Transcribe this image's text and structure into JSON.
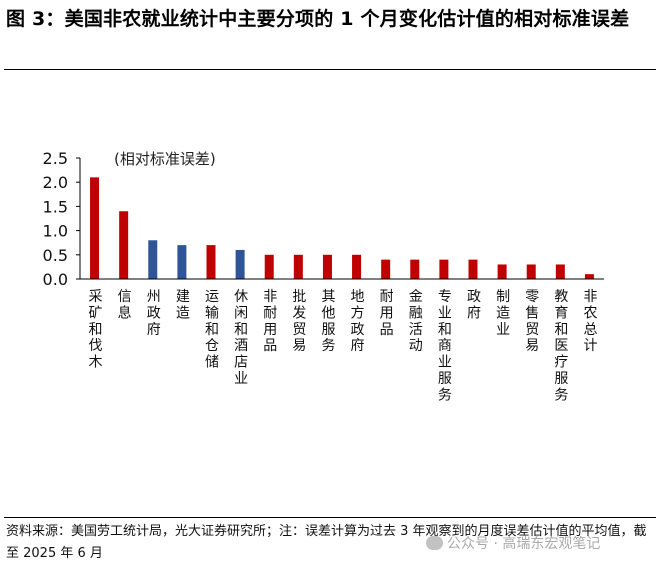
{
  "title": "图 3：美国非农就业统计中主要分项的 1 个月变化估计值的相对标准误差",
  "source": "资料来源：美国劳工统计局，光大证券研究所；注：误差计算为过去 3 年观察到的月度误差估计值的平均值，截至 2025 年 6 月",
  "watermark": "公众号 · 高瑞东宏观笔记",
  "colors": {
    "red": "#C00000",
    "blue": "#2F5597"
  },
  "chart_data": {
    "type": "bar",
    "ylabel": "(相对标准误差)",
    "ylim": [
      0,
      2.5
    ],
    "yticks": [
      "0.0",
      "0.5",
      "1.0",
      "1.5",
      "2.0",
      "2.5"
    ],
    "categories": [
      "采矿和伐木",
      "信息",
      "州政府",
      "建造",
      "运输和仓储",
      "休闲和酒店业",
      "非耐用品",
      "批发贸易",
      "其他服务",
      "地方政府",
      "耐用品",
      "金融活动",
      "专业和商业服务",
      "政府",
      "制造业",
      "零售贸易",
      "教育和医疗服务",
      "非农总计"
    ],
    "values": [
      2.1,
      1.4,
      0.8,
      0.7,
      0.7,
      0.6,
      0.5,
      0.5,
      0.5,
      0.5,
      0.4,
      0.4,
      0.4,
      0.4,
      0.3,
      0.3,
      0.3,
      0.1
    ],
    "bar_colors": [
      "red",
      "red",
      "blue",
      "blue",
      "red",
      "blue",
      "red",
      "red",
      "red",
      "red",
      "red",
      "red",
      "red",
      "red",
      "red",
      "red",
      "red",
      "red"
    ],
    "grid": false,
    "legend": "none"
  }
}
